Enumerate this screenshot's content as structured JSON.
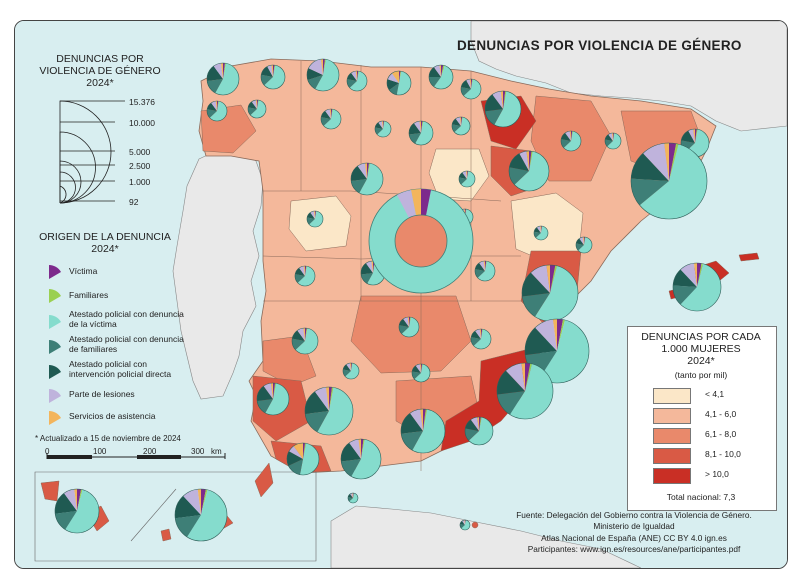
{
  "title": "DENUNCIAS POR VIOLENCIA DE GÉNERO",
  "size_legend": {
    "title_lines": [
      "DENUNCIAS POR",
      "VIOLENCIA DE GÉNERO",
      "2024*"
    ],
    "values": [
      "15.376",
      "10.000",
      "5.000",
      "2.500",
      "1.000",
      "92"
    ]
  },
  "origin_legend": {
    "title_lines": [
      "ORIGEN DE LA DENUNCIA",
      "2024*"
    ],
    "items": [
      {
        "label": "Víctima",
        "color": "#7d2a8c"
      },
      {
        "label": "Familiares",
        "color": "#9ad052"
      },
      {
        "label": "Atestado policial con denuncia de la víctima",
        "color": "#85dccd"
      },
      {
        "label": "Atestado policial con denuncia de familiares",
        "color": "#3e7f77"
      },
      {
        "label": "Atestado policial con intervención policial directa",
        "color": "#1f5a52"
      },
      {
        "label": "Parte de lesiones",
        "color": "#bfb3dc"
      },
      {
        "label": "Servicios de asistencia",
        "color": "#f3b55c"
      }
    ]
  },
  "note": "* Actualizado a 15 de noviembre de 2024",
  "scale": {
    "ticks": [
      "0",
      "100",
      "200",
      "300"
    ],
    "unit": "km"
  },
  "ramp_legend": {
    "title_lines": [
      "DENUNCIAS POR CADA",
      "1.000 MUJERES",
      "2024*"
    ],
    "subtitle": "(tanto por mil)",
    "classes": [
      {
        "label": "< 4,1",
        "color": "#fbe7c8"
      },
      {
        "label": "4,1 - 6,0",
        "color": "#f4b89b"
      },
      {
        "label": "6,1 - 8,0",
        "color": "#e9896b"
      },
      {
        "label": "8,1 - 10,0",
        "color": "#d95a45"
      },
      {
        "label": "> 10,0",
        "color": "#c92f25"
      }
    ],
    "total": "Total nacional: 7,3"
  },
  "credits": {
    "line1": "Fuente: Delegación del Gobierno contra la Violencia de Género.",
    "line2": "Ministerio de Igualdad",
    "line3": "Atlas Nacional de España (ANE) CC BY 4.0 ign.es",
    "line4": "Participantes: www.ign.es/resources/ane/participantes.pdf"
  }
}
